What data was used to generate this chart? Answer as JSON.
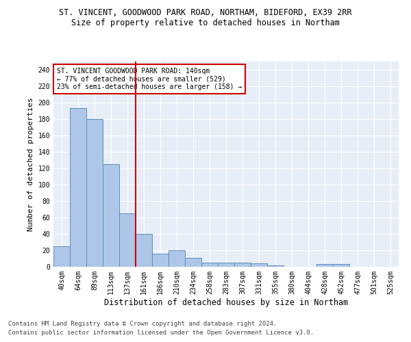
{
  "title1": "ST. VINCENT, GOODWOOD PARK ROAD, NORTHAM, BIDEFORD, EX39 2RR",
  "title2": "Size of property relative to detached houses in Northam",
  "xlabel": "Distribution of detached houses by size in Northam",
  "ylabel": "Number of detached properties",
  "footer1": "Contains HM Land Registry data © Crown copyright and database right 2024.",
  "footer2": "Contains public sector information licensed under the Open Government Licence v3.0.",
  "categories": [
    "40sqm",
    "64sqm",
    "89sqm",
    "113sqm",
    "137sqm",
    "161sqm",
    "186sqm",
    "210sqm",
    "234sqm",
    "258sqm",
    "283sqm",
    "307sqm",
    "331sqm",
    "355sqm",
    "380sqm",
    "404sqm",
    "428sqm",
    "452sqm",
    "477sqm",
    "501sqm",
    "525sqm"
  ],
  "values": [
    25,
    193,
    180,
    125,
    65,
    40,
    16,
    20,
    11,
    5,
    5,
    5,
    4,
    2,
    0,
    0,
    3,
    3,
    0,
    0,
    0
  ],
  "bar_color": "#aec6e8",
  "bar_edgecolor": "#5a8fc0",
  "vline_x": 4.5,
  "vline_color": "#cc0000",
  "annotation_text": "ST. VINCENT GOODWOOD PARK ROAD: 140sqm\n← 77% of detached houses are smaller (529)\n23% of semi-detached houses are larger (158) →",
  "annotation_box_edgecolor": "#cc0000",
  "ylim": [
    0,
    250
  ],
  "yticks": [
    0,
    20,
    40,
    60,
    80,
    100,
    120,
    140,
    160,
    180,
    200,
    220,
    240
  ],
  "background_color": "#e8eef8",
  "grid_color": "#ffffff",
  "title1_fontsize": 8.5,
  "title2_fontsize": 8.5,
  "xlabel_fontsize": 8.5,
  "ylabel_fontsize": 8,
  "tick_fontsize": 7,
  "annotation_fontsize": 7,
  "footer_fontsize": 6.5
}
